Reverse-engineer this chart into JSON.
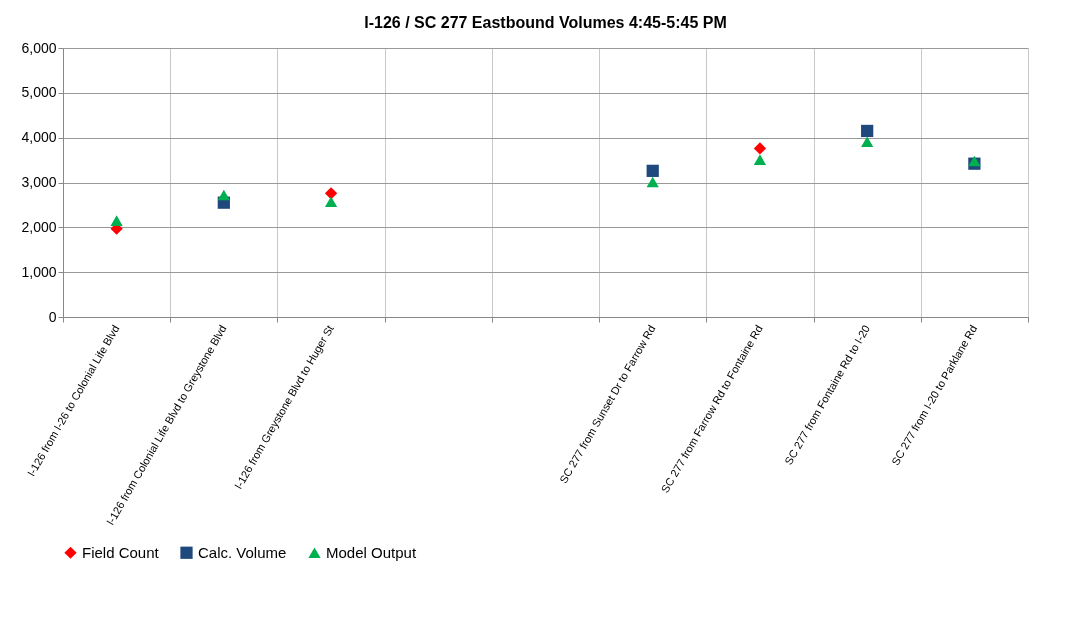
{
  "chart_data": {
    "type": "scatter",
    "title": "I-126 / SC 277 Eastbound Volumes 4:45-5:45 PM",
    "categories": [
      "I-126 from I-26 to Colonial Life Blvd",
      "I-126 from Colonial Life Blvd to Greystone Blvd",
      "I-126 from Greystone Blvd to Huger St",
      null,
      null,
      "SC 277 from Sunset Dr to Farrow Rd",
      "SC 277 from Farrow Rd to Fontaine Rd",
      "SC 277 from Fontaine Rd to I-20",
      "SC 277 from I-20 to Parklane Rd"
    ],
    "series": [
      {
        "name": "Field Count",
        "color": "#ff0000",
        "marker": "diamond",
        "values": [
          1970,
          null,
          2760,
          null,
          null,
          null,
          3760,
          null,
          null
        ]
      },
      {
        "name": "Calc. Volume",
        "color": "#1f497d",
        "marker": "square",
        "values": [
          null,
          2550,
          null,
          null,
          null,
          3260,
          null,
          4150,
          3420
        ]
      },
      {
        "name": "Model Output",
        "color": "#00b050",
        "marker": "triangle",
        "values": [
          2150,
          2720,
          2570,
          null,
          null,
          3010,
          3510,
          3910,
          3480
        ]
      }
    ],
    "ylim": [
      0,
      6000
    ],
    "yticks": [
      {
        "value": 0,
        "label": "0"
      },
      {
        "value": 1000,
        "label": "1,000"
      },
      {
        "value": 2000,
        "label": "2,000"
      },
      {
        "value": 3000,
        "label": "3,000"
      },
      {
        "value": 4000,
        "label": "4,000"
      },
      {
        "value": 5000,
        "label": "5,000"
      },
      {
        "value": 6000,
        "label": "6,000"
      }
    ],
    "grid": true,
    "legend": "bottom"
  }
}
